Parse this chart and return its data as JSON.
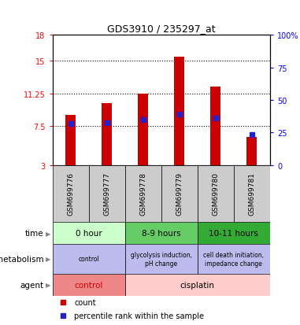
{
  "title": "GDS3910 / 235297_at",
  "samples": [
    "GSM699776",
    "GSM699777",
    "GSM699778",
    "GSM699779",
    "GSM699780",
    "GSM699781"
  ],
  "bar_heights": [
    8.8,
    10.1,
    11.25,
    15.5,
    12.0,
    6.2
  ],
  "blue_markers": [
    7.8,
    7.9,
    8.2,
    8.9,
    8.4,
    6.5
  ],
  "ylim_left": [
    3,
    18
  ],
  "ylim_right": [
    0,
    100
  ],
  "yticks_left": [
    3,
    7.5,
    11.25,
    15,
    18
  ],
  "yticks_right": [
    0,
    25,
    50,
    75,
    100
  ],
  "ytick_labels_left": [
    "3",
    "7.5",
    "11.25",
    "15",
    "18"
  ],
  "ytick_labels_right": [
    "0",
    "25",
    "50",
    "75",
    "100%"
  ],
  "dotted_lines": [
    7.5,
    11.25,
    15
  ],
  "bar_color": "#cc0000",
  "blue_color": "#2222cc",
  "time_info": [
    [
      0,
      2,
      "0 hour",
      "#ccffcc"
    ],
    [
      2,
      4,
      "8-9 hours",
      "#66cc66"
    ],
    [
      4,
      6,
      "10-11 hours",
      "#33aa33"
    ]
  ],
  "meta_info": [
    [
      0,
      2,
      "control",
      "#bbbbee"
    ],
    [
      2,
      4,
      "glycolysis induction,\npH change",
      "#bbbbee"
    ],
    [
      4,
      6,
      "cell death initiation,\nimpedance change",
      "#bbbbee"
    ]
  ],
  "agent_info": [
    [
      0,
      2,
      "control",
      "#ee8888"
    ],
    [
      2,
      6,
      "cisplatin",
      "#ffcccc"
    ]
  ],
  "row_labels": [
    "time",
    "metabolism",
    "agent"
  ],
  "bg_color": "#ffffff",
  "sample_bg": "#cccccc",
  "agent_control_text_color": "#cc0000",
  "agent_cisplatin_text_color": "#000000"
}
